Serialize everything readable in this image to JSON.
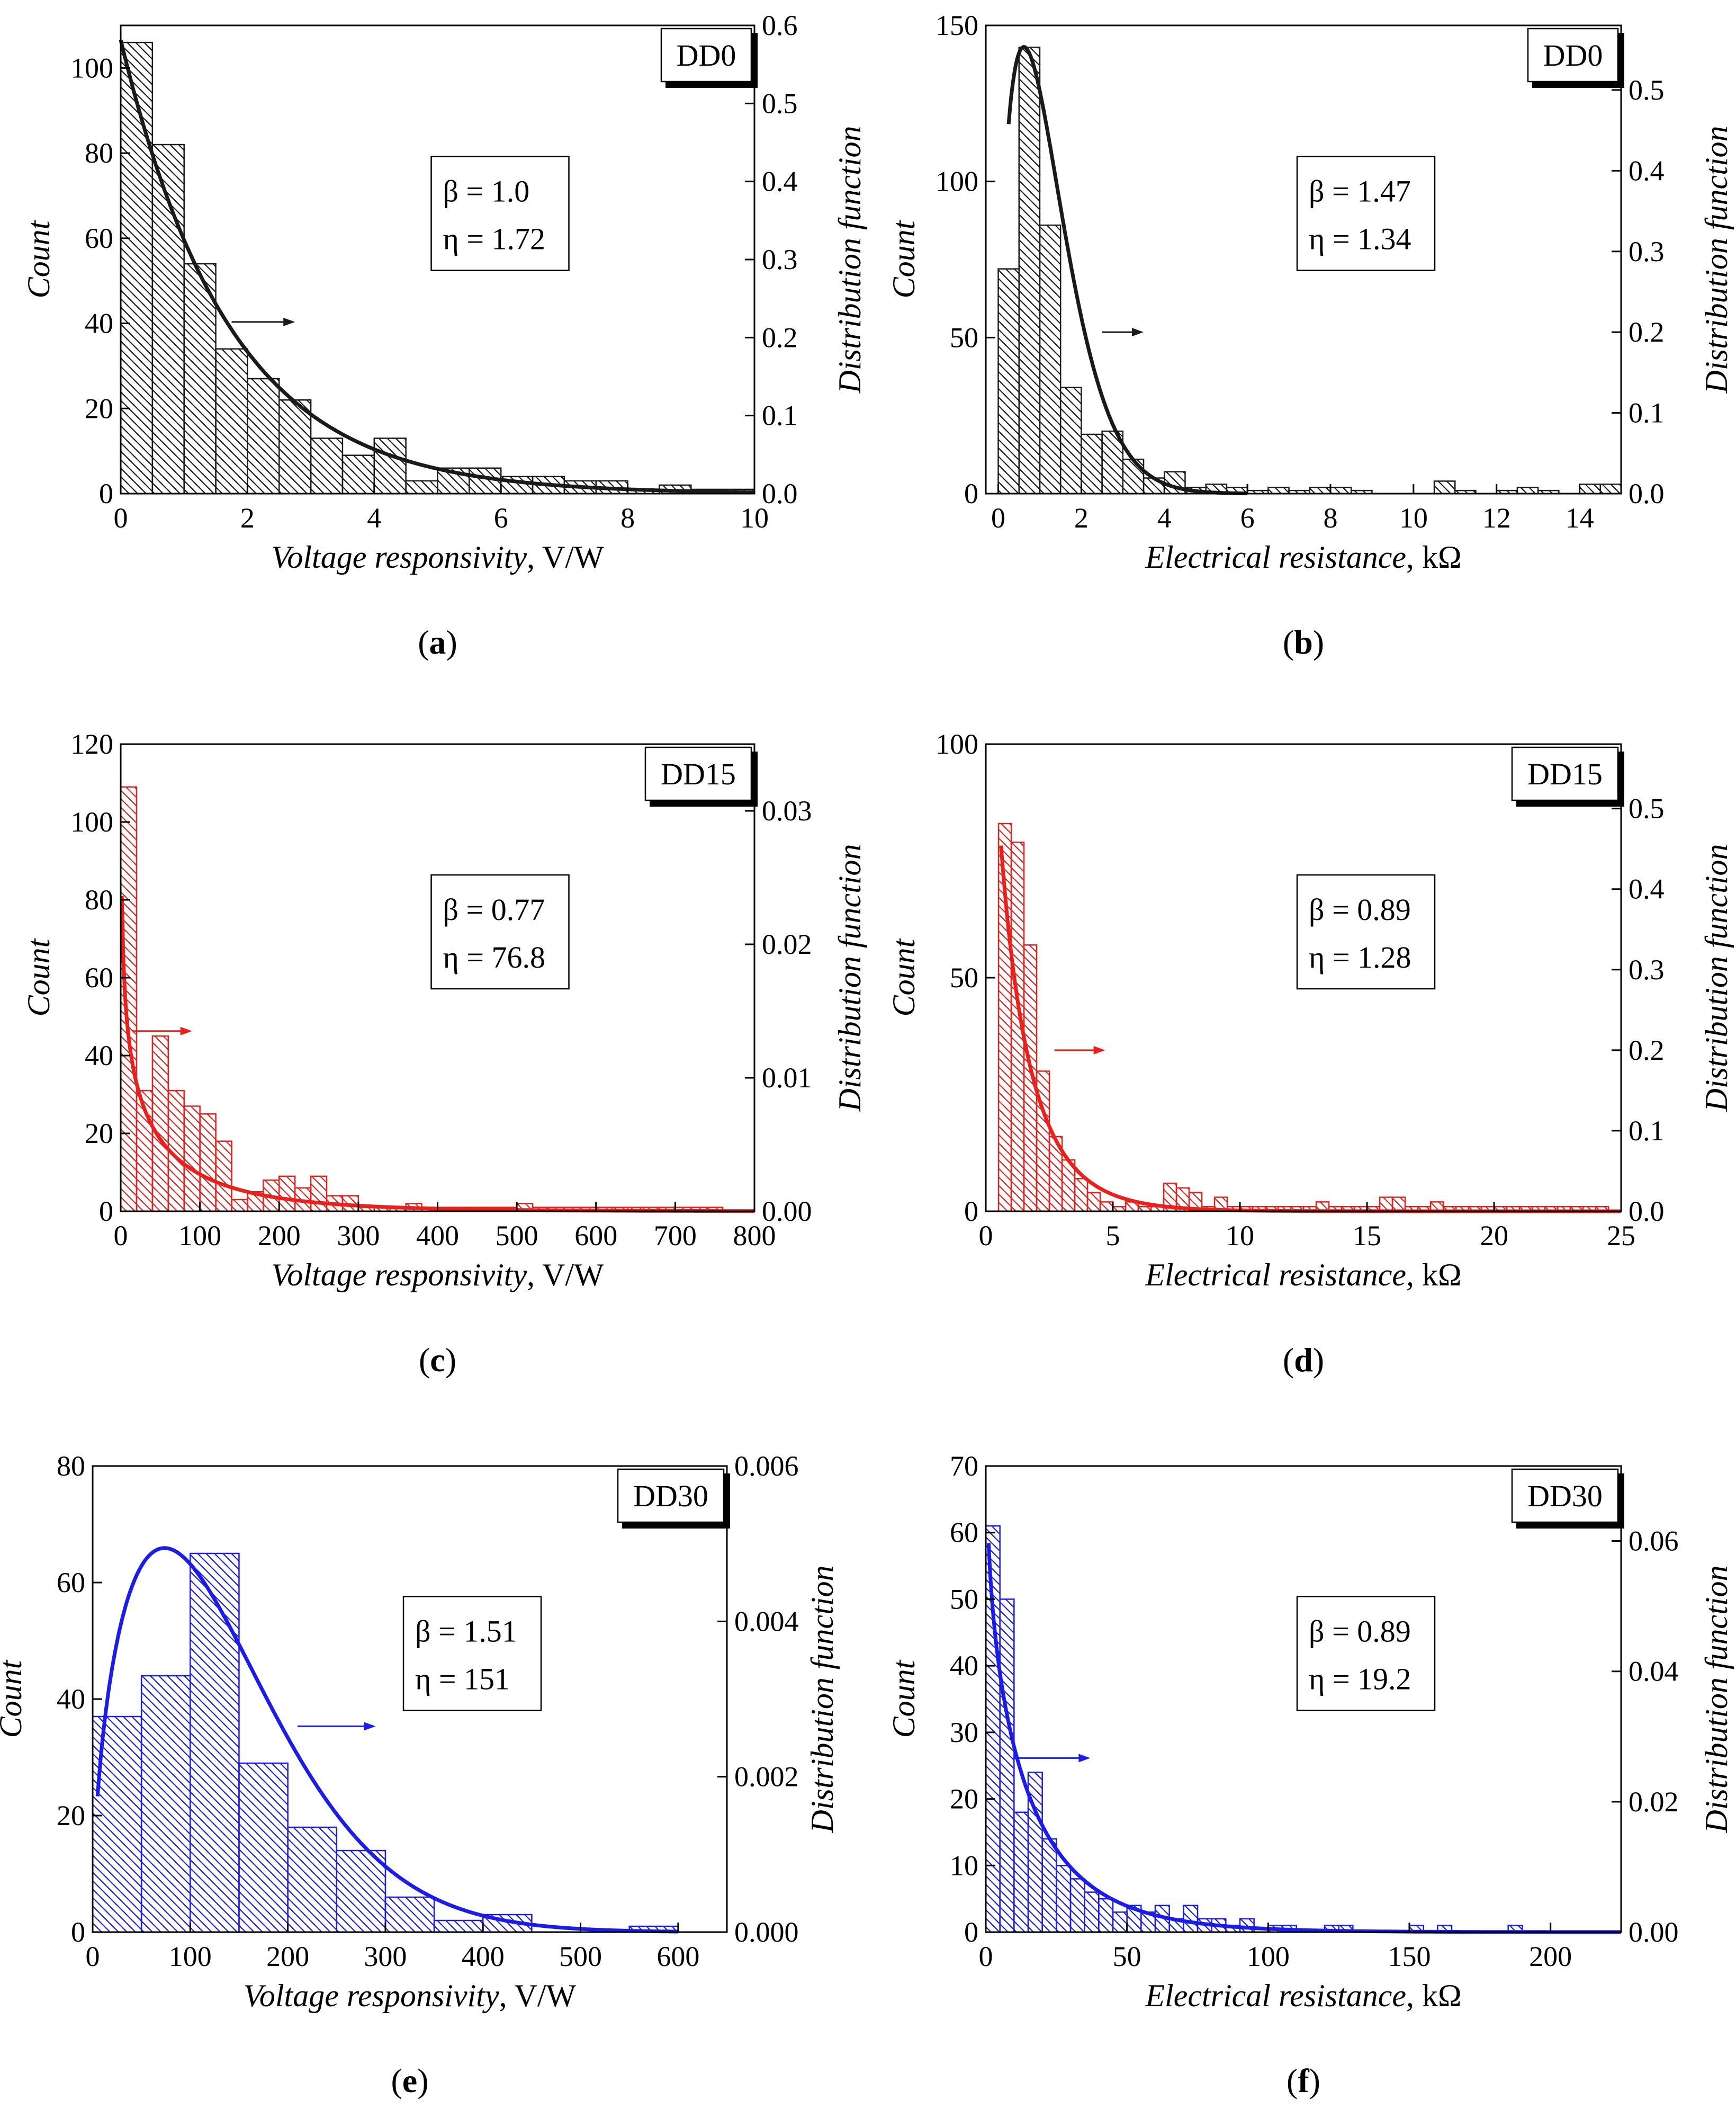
{
  "chart_data": [
    {
      "type": "bar",
      "panel_label": "a",
      "color": "#1a1a1a",
      "sample_tag": "DD0",
      "xlabel_italic": "Voltage responsivity",
      "xlabel_unit": ", V/W",
      "ylabel": "Count",
      "y2label": "Distribution function",
      "xlim": [
        0,
        10
      ],
      "ylim": [
        0,
        110
      ],
      "y2lim": [
        0,
        0.6
      ],
      "xticks": [
        0,
        2,
        4,
        6,
        8,
        10
      ],
      "xtick_labels": [
        "0",
        "2",
        "4",
        "6",
        "8",
        "10"
      ],
      "yticks": [
        0,
        20,
        40,
        60,
        80,
        100
      ],
      "ytick_labels": [
        "0",
        "20",
        "40",
        "60",
        "80",
        "100"
      ],
      "y2ticks": [
        0,
        0.1,
        0.2,
        0.3,
        0.4,
        0.5,
        0.6
      ],
      "y2tick_labels": [
        "0.0",
        "0.1",
        "0.2",
        "0.3",
        "0.4",
        "0.5",
        "0.6"
      ],
      "bin_start": 0,
      "bin_width": 0.5,
      "values": [
        106,
        82,
        54,
        34,
        27,
        22,
        13,
        9,
        13,
        3,
        6,
        6,
        4,
        4,
        3,
        3,
        1,
        2,
        1,
        1
      ],
      "beta_label": "β = 1.0",
      "eta_label": "η = 1.72",
      "fit": {
        "kind": "weibull",
        "beta": 1.0,
        "eta": 1.72,
        "x_from": 0.0,
        "x_to": 10
      },
      "arrow": {
        "x": 1.75,
        "y2": 0.22,
        "dx": 1.0
      }
    },
    {
      "type": "bar",
      "panel_label": "b",
      "color": "#1a1a1a",
      "sample_tag": "DD0",
      "xlabel_italic": "Electrical resistance",
      "xlabel_unit": ", kΩ",
      "ylabel": "Count",
      "y2label": "Distribution function",
      "xlim": [
        -0.3,
        15
      ],
      "ylim": [
        0,
        150
      ],
      "y2lim": [
        0,
        0.58
      ],
      "xticks": [
        0,
        2,
        4,
        6,
        8,
        10,
        12,
        14
      ],
      "xtick_labels": [
        "0",
        "2",
        "4",
        "6",
        "8",
        "10",
        "12",
        "14"
      ],
      "yticks": [
        0,
        50,
        100,
        150
      ],
      "ytick_labels": [
        "0",
        "50",
        "100",
        "150"
      ],
      "y2ticks": [
        0,
        0.1,
        0.2,
        0.3,
        0.4,
        0.5
      ],
      "y2tick_labels": [
        "0.0",
        "0.1",
        "0.2",
        "0.3",
        "0.4",
        "0.5"
      ],
      "bin_start": 0,
      "bin_width": 0.5,
      "values": [
        72,
        143,
        86,
        34,
        19,
        20,
        11,
        5,
        7,
        2,
        3,
        2,
        1,
        2,
        1,
        2,
        2,
        1,
        0,
        0,
        0,
        4,
        1,
        0,
        1,
        2,
        1,
        0,
        3,
        3
      ],
      "beta_label": "β = 1.47",
      "eta_label": "η = 1.34",
      "fit": {
        "kind": "weibull",
        "beta": 1.47,
        "eta": 1.34,
        "x_from": 0.25,
        "x_to": 6
      },
      "arrow": {
        "x": 2.5,
        "y2": 0.2,
        "dx": 1.0
      }
    },
    {
      "type": "bar",
      "panel_label": "c",
      "color": "#e8211c",
      "sample_tag": "DD15",
      "xlabel_italic": "Voltage responsivity",
      "xlabel_unit": ", V/W",
      "ylabel": "Count",
      "y2label": "Distribution function",
      "xlim": [
        0,
        800
      ],
      "ylim": [
        0,
        120
      ],
      "y2lim": [
        0,
        0.035
      ],
      "xticks": [
        0,
        100,
        200,
        300,
        400,
        500,
        600,
        700,
        800
      ],
      "xtick_labels": [
        "0",
        "100",
        "200",
        "300",
        "400",
        "500",
        "600",
        "700",
        "800"
      ],
      "yticks": [
        0,
        20,
        40,
        60,
        80,
        100,
        120
      ],
      "ytick_labels": [
        "0",
        "20",
        "40",
        "60",
        "80",
        "100",
        "120"
      ],
      "y2ticks": [
        0,
        0.01,
        0.02,
        0.03
      ],
      "y2tick_labels": [
        "0.00",
        "0.01",
        "0.02",
        "0.03"
      ],
      "bin_start": 0,
      "bin_width": 20,
      "values": [
        109,
        31,
        45,
        31,
        27,
        25,
        18,
        3,
        5,
        8,
        9,
        6,
        9,
        4,
        4,
        1,
        1,
        1,
        2,
        1,
        1,
        1,
        1,
        1,
        1,
        2,
        1,
        1,
        1,
        1,
        1,
        1,
        1,
        1,
        1,
        1,
        1,
        1
      ],
      "beta_label": "β = 0.77",
      "eta_label": "η = 76.8",
      "fit": {
        "kind": "weibull",
        "beta": 0.77,
        "eta": 76.8,
        "x_from": 1.5,
        "x_to": 800
      },
      "arrow": {
        "x": 15,
        "y2": 0.0135,
        "dx": 75
      }
    },
    {
      "type": "bar",
      "panel_label": "d",
      "color": "#e8211c",
      "sample_tag": "DD15",
      "xlabel_italic": "Electrical resistance",
      "xlabel_unit": ", kΩ",
      "ylabel": "Count",
      "y2label": "Distribution function",
      "xlim": [
        0,
        25
      ],
      "ylim": [
        0,
        100
      ],
      "y2lim": [
        0,
        0.58
      ],
      "xticks": [
        0,
        5,
        10,
        15,
        20,
        25
      ],
      "xtick_labels": [
        "0",
        "5",
        "10",
        "15",
        "20",
        "25"
      ],
      "yticks": [
        0,
        50,
        100
      ],
      "ytick_labels": [
        "0",
        "50",
        "100"
      ],
      "y2ticks": [
        0,
        0.1,
        0.2,
        0.3,
        0.4,
        0.5
      ],
      "y2tick_labels": [
        "0.0",
        "0.1",
        "0.2",
        "0.3",
        "0.4",
        "0.5"
      ],
      "bin_start": 0.5,
      "bin_width": 0.5,
      "values": [
        83,
        79,
        57,
        30,
        16,
        11,
        7,
        4,
        2,
        1,
        2,
        1,
        1,
        6,
        5,
        4,
        1,
        3,
        1,
        1,
        1,
        1,
        1,
        1,
        1,
        2,
        1,
        1,
        1,
        1,
        3,
        3,
        1,
        1,
        2,
        1,
        1,
        1,
        1,
        1,
        1,
        1,
        1,
        1,
        1,
        1,
        1,
        1
      ],
      "beta_label": "β = 0.89",
      "eta_label": "η = 1.28",
      "fit": {
        "kind": "weibull",
        "beta": 0.89,
        "eta": 1.28,
        "x_from": 0.6,
        "x_to": 25
      },
      "arrow": {
        "x": 2.7,
        "y2": 0.2,
        "dx": 2.0
      }
    },
    {
      "type": "bar",
      "panel_label": "e",
      "color": "#1c1ce8",
      "sample_tag": "DD30",
      "xlabel_italic": "Voltage responsivity",
      "xlabel_unit": ", V/W",
      "ylabel": "Count",
      "y2label": "Distribution function",
      "xlim": [
        0,
        650
      ],
      "ylim": [
        0,
        80
      ],
      "y2lim": [
        0,
        0.006
      ],
      "xticks": [
        0,
        100,
        200,
        300,
        400,
        500,
        600
      ],
      "xtick_labels": [
        "0",
        "100",
        "200",
        "300",
        "400",
        "500",
        "600"
      ],
      "yticks": [
        0,
        20,
        40,
        60,
        80
      ],
      "ytick_labels": [
        "0",
        "20",
        "40",
        "60",
        "80"
      ],
      "y2ticks": [
        0,
        0.002,
        0.004,
        0.006
      ],
      "y2tick_labels": [
        "0.000",
        "0.002",
        "0.004",
        "0.006"
      ],
      "bin_start": 0,
      "bin_width": 50,
      "values": [
        37,
        44,
        65,
        29,
        18,
        14,
        6,
        2,
        3,
        0,
        0,
        1
      ],
      "beta_label": "β = 1.51",
      "eta_label": "η = 151",
      "fit": {
        "kind": "weibull",
        "beta": 1.51,
        "eta": 151,
        "x_from": 5,
        "x_to": 600
      },
      "arrow": {
        "x": 210,
        "y2": 0.00265,
        "dx": 80
      }
    },
    {
      "type": "bar",
      "panel_label": "f",
      "color": "#1c1ce8",
      "sample_tag": "DD30",
      "xlabel_italic": "Electrical resistance",
      "xlabel_unit": ", kΩ",
      "ylabel": "Count",
      "y2label": "Distribution function",
      "xlim": [
        0,
        225
      ],
      "ylim": [
        0,
        70
      ],
      "y2lim": [
        0,
        0.0715
      ],
      "xticks": [
        0,
        50,
        100,
        150,
        200
      ],
      "xtick_labels": [
        "0",
        "50",
        "100",
        "150",
        "200"
      ],
      "yticks": [
        0,
        10,
        20,
        30,
        40,
        50,
        60,
        70
      ],
      "ytick_labels": [
        "0",
        "10",
        "20",
        "30",
        "40",
        "50",
        "60",
        "70"
      ],
      "y2ticks": [
        0,
        0.02,
        0.04,
        0.06
      ],
      "y2tick_labels": [
        "0.00",
        "0.02",
        "0.04",
        "0.06"
      ],
      "bin_start": 0,
      "bin_width": 5,
      "values": [
        61,
        50,
        18,
        24,
        14,
        10,
        8,
        6,
        5,
        3,
        4,
        3,
        4,
        2,
        4,
        2,
        2,
        1,
        2,
        0,
        1,
        1,
        0,
        0,
        1,
        1,
        0,
        0,
        0,
        0,
        1,
        0,
        1,
        0,
        0,
        0,
        0,
        1
      ],
      "beta_label": "β = 0.89",
      "eta_label": "η = 19.2",
      "fit": {
        "kind": "weibull",
        "beta": 0.89,
        "eta": 19.2,
        "x_from": 1,
        "x_to": 225
      },
      "arrow": {
        "x": 10,
        "y2": 0.0267,
        "dx": 27
      }
    }
  ]
}
